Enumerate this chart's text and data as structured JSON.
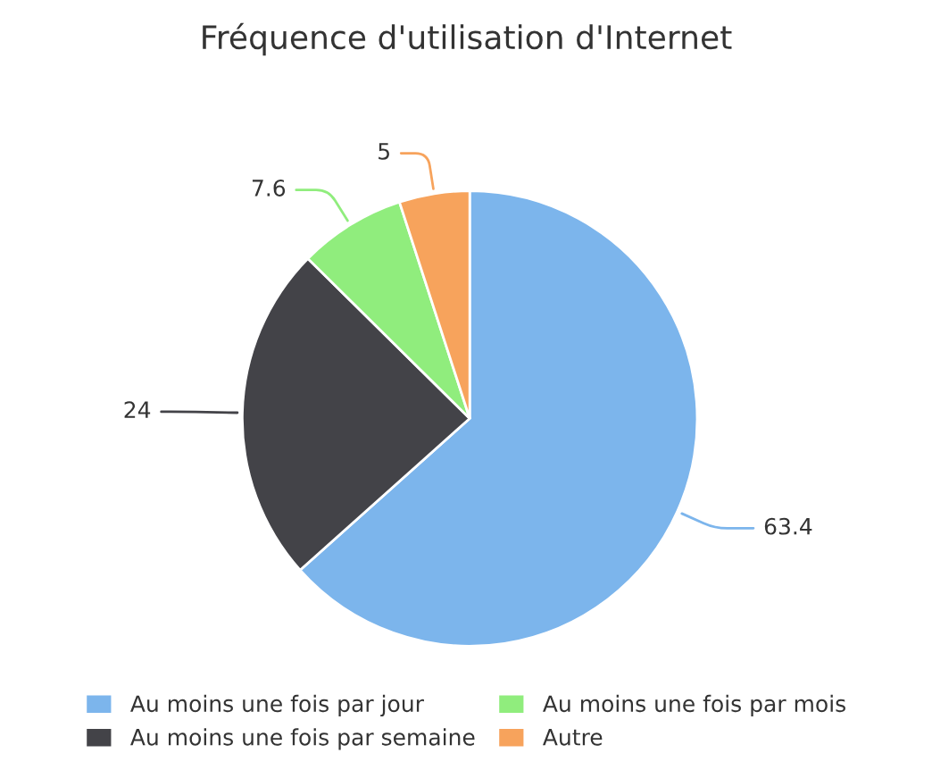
{
  "chart_data": {
    "type": "pie",
    "title": "Fréquence d'utilisation d'Internet",
    "categories": [
      "Au moins une fois par jour",
      "Au moins une fois par semaine",
      "Au moins une fois par mois",
      "Autre"
    ],
    "values": [
      63.4,
      24,
      7.6,
      5
    ],
    "colors": [
      "#7cb5ec",
      "#434348",
      "#90ed7d",
      "#f7a35c"
    ],
    "data_labels": true,
    "legend": "bottom"
  }
}
